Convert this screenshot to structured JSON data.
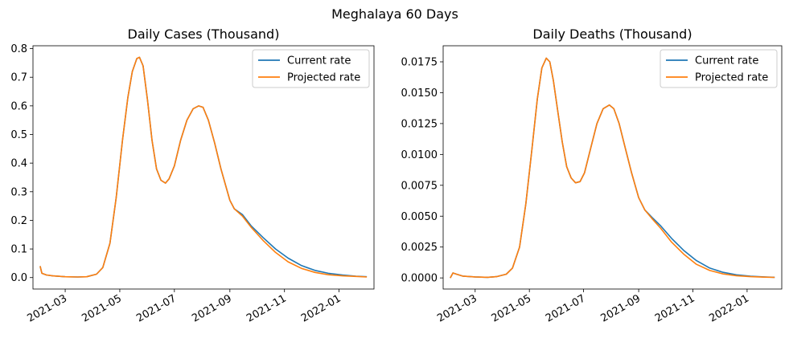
{
  "figure": {
    "suptitle": "Meghalaya 60 Days"
  },
  "colors": {
    "current": "#1f77b4",
    "projected": "#ff7f0e"
  },
  "chart_data": [
    {
      "type": "line",
      "title": "Daily Cases (Thousand)",
      "xlabel": "",
      "ylabel": "",
      "ylim": [
        -0.04,
        0.81
      ],
      "xlim": [
        "2022-01-21",
        "2022-02-09"
      ],
      "yticks": [
        "0.0",
        "0.1",
        "0.2",
        "0.3",
        "0.4",
        "0.5",
        "0.6",
        "0.7",
        "0.8"
      ],
      "xticks": [
        "2021-03",
        "2021-05",
        "2021-07",
        "2021-09",
        "2021-11",
        "2022-01"
      ],
      "legend": {
        "position": "top-right",
        "entries": [
          "Current rate",
          "Projected rate"
        ]
      },
      "series": [
        {
          "name": "Current rate",
          "x": [
            "2021-02-01",
            "2021-02-03",
            "2021-02-08",
            "2021-02-15",
            "2021-03-01",
            "2021-03-15",
            "2021-03-25",
            "2021-04-05",
            "2021-04-12",
            "2021-04-20",
            "2021-04-27",
            "2021-05-04",
            "2021-05-10",
            "2021-05-15",
            "2021-05-20",
            "2021-05-23",
            "2021-05-27",
            "2021-06-01",
            "2021-06-06",
            "2021-06-11",
            "2021-06-16",
            "2021-06-21",
            "2021-06-25",
            "2021-07-01",
            "2021-07-08",
            "2021-07-15",
            "2021-07-22",
            "2021-07-28",
            "2021-08-02",
            "2021-08-08",
            "2021-08-15",
            "2021-08-22",
            "2021-09-01",
            "2021-09-06",
            "2021-09-15",
            "2021-09-25",
            "2021-10-08",
            "2021-10-22",
            "2021-11-05",
            "2021-11-20",
            "2021-12-05",
            "2021-12-20",
            "2022-01-05",
            "2022-01-20",
            "2022-02-01"
          ],
          "y": [
            0.04,
            0.015,
            0.009,
            0.006,
            0.003,
            0.002,
            0.003,
            0.012,
            0.035,
            0.12,
            0.28,
            0.48,
            0.63,
            0.72,
            0.765,
            0.77,
            0.74,
            0.62,
            0.48,
            0.38,
            0.34,
            0.33,
            0.345,
            0.39,
            0.48,
            0.55,
            0.59,
            0.6,
            0.595,
            0.55,
            0.47,
            0.38,
            0.27,
            0.24,
            0.22,
            0.18,
            0.14,
            0.1,
            0.068,
            0.042,
            0.025,
            0.015,
            0.009,
            0.005,
            0.003
          ]
        },
        {
          "name": "Projected rate",
          "x": [
            "2021-02-01",
            "2021-02-03",
            "2021-02-08",
            "2021-02-15",
            "2021-03-01",
            "2021-03-15",
            "2021-03-25",
            "2021-04-05",
            "2021-04-12",
            "2021-04-20",
            "2021-04-27",
            "2021-05-04",
            "2021-05-10",
            "2021-05-15",
            "2021-05-20",
            "2021-05-23",
            "2021-05-27",
            "2021-06-01",
            "2021-06-06",
            "2021-06-11",
            "2021-06-16",
            "2021-06-21",
            "2021-06-25",
            "2021-07-01",
            "2021-07-08",
            "2021-07-15",
            "2021-07-22",
            "2021-07-28",
            "2021-08-02",
            "2021-08-08",
            "2021-08-15",
            "2021-08-22",
            "2021-09-01",
            "2021-09-06",
            "2021-09-15",
            "2021-09-25",
            "2021-10-08",
            "2021-10-22",
            "2021-11-05",
            "2021-11-20",
            "2021-12-05",
            "2021-12-20",
            "2022-01-05",
            "2022-01-20",
            "2022-02-01"
          ],
          "y": [
            0.04,
            0.015,
            0.009,
            0.006,
            0.003,
            0.002,
            0.003,
            0.012,
            0.035,
            0.12,
            0.28,
            0.48,
            0.63,
            0.72,
            0.765,
            0.77,
            0.74,
            0.62,
            0.48,
            0.38,
            0.34,
            0.33,
            0.345,
            0.39,
            0.48,
            0.55,
            0.59,
            0.6,
            0.595,
            0.55,
            0.47,
            0.38,
            0.27,
            0.24,
            0.215,
            0.175,
            0.13,
            0.088,
            0.055,
            0.032,
            0.018,
            0.01,
            0.006,
            0.004,
            0.002
          ]
        }
      ]
    },
    {
      "type": "line",
      "title": "Daily Deaths (Thousand)",
      "xlabel": "",
      "ylabel": "",
      "ylim": [
        -0.0009,
        0.0188
      ],
      "xlim": [
        "2021-01-21",
        "2022-02-09"
      ],
      "yticks": [
        "0.0000",
        "0.0025",
        "0.0050",
        "0.0075",
        "0.0100",
        "0.0125",
        "0.0150",
        "0.0175"
      ],
      "xticks": [
        "2021-03",
        "2021-05",
        "2021-07",
        "2021-09",
        "2021-11",
        "2022-01"
      ],
      "legend": {
        "position": "top-right",
        "entries": [
          "Current rate",
          "Projected rate"
        ]
      },
      "series": [
        {
          "name": "Current rate",
          "x": [
            "2021-02-01",
            "2021-02-04",
            "2021-02-08",
            "2021-02-15",
            "2021-03-01",
            "2021-03-15",
            "2021-03-25",
            "2021-04-05",
            "2021-04-12",
            "2021-04-20",
            "2021-04-27",
            "2021-05-04",
            "2021-05-10",
            "2021-05-15",
            "2021-05-20",
            "2021-05-24",
            "2021-05-28",
            "2021-06-02",
            "2021-06-07",
            "2021-06-12",
            "2021-06-17",
            "2021-06-22",
            "2021-06-27",
            "2021-07-02",
            "2021-07-09",
            "2021-07-16",
            "2021-07-23",
            "2021-07-30",
            "2021-08-04",
            "2021-08-10",
            "2021-08-17",
            "2021-08-24",
            "2021-09-01",
            "2021-09-08",
            "2021-09-16",
            "2021-09-26",
            "2021-10-08",
            "2021-10-22",
            "2021-11-05",
            "2021-11-20",
            "2021-12-05",
            "2021-12-20",
            "2022-01-05",
            "2022-01-20",
            "2022-02-01"
          ],
          "y": [
            0.0,
            0.0004,
            0.0003,
            0.00015,
            8e-05,
            5e-05,
            0.0001,
            0.0003,
            0.0008,
            0.0025,
            0.006,
            0.0105,
            0.0145,
            0.017,
            0.0178,
            0.0175,
            0.016,
            0.0135,
            0.011,
            0.009,
            0.0081,
            0.0077,
            0.0078,
            0.0085,
            0.0105,
            0.0125,
            0.0137,
            0.014,
            0.0137,
            0.0125,
            0.0105,
            0.0085,
            0.0065,
            0.0055,
            0.0049,
            0.0042,
            0.0032,
            0.0022,
            0.0014,
            0.0008,
            0.00045,
            0.00025,
            0.00014,
            8e-05,
            5e-05
          ]
        },
        {
          "name": "Projected rate",
          "x": [
            "2021-02-01",
            "2021-02-04",
            "2021-02-08",
            "2021-02-15",
            "2021-03-01",
            "2021-03-15",
            "2021-03-25",
            "2021-04-05",
            "2021-04-12",
            "2021-04-20",
            "2021-04-27",
            "2021-05-04",
            "2021-05-10",
            "2021-05-15",
            "2021-05-20",
            "2021-05-24",
            "2021-05-28",
            "2021-06-02",
            "2021-06-07",
            "2021-06-12",
            "2021-06-17",
            "2021-06-22",
            "2021-06-27",
            "2021-07-02",
            "2021-07-09",
            "2021-07-16",
            "2021-07-23",
            "2021-07-30",
            "2021-08-04",
            "2021-08-10",
            "2021-08-17",
            "2021-08-24",
            "2021-09-01",
            "2021-09-08",
            "2021-09-16",
            "2021-09-26",
            "2021-10-08",
            "2021-10-22",
            "2021-11-05",
            "2021-11-20",
            "2021-12-05",
            "2021-12-20",
            "2022-01-05",
            "2022-01-20",
            "2022-02-01"
          ],
          "y": [
            0.0,
            0.0004,
            0.0003,
            0.00015,
            8e-05,
            5e-05,
            0.0001,
            0.0003,
            0.0008,
            0.0025,
            0.006,
            0.0105,
            0.0145,
            0.017,
            0.0178,
            0.0175,
            0.016,
            0.0135,
            0.011,
            0.009,
            0.0081,
            0.0077,
            0.0078,
            0.0085,
            0.0105,
            0.0125,
            0.0137,
            0.014,
            0.0137,
            0.0125,
            0.0105,
            0.0085,
            0.0065,
            0.0055,
            0.0048,
            0.004,
            0.0029,
            0.0019,
            0.0011,
            0.0006,
            0.00032,
            0.00018,
            0.0001,
            6e-05,
            4e-05
          ]
        }
      ]
    }
  ]
}
